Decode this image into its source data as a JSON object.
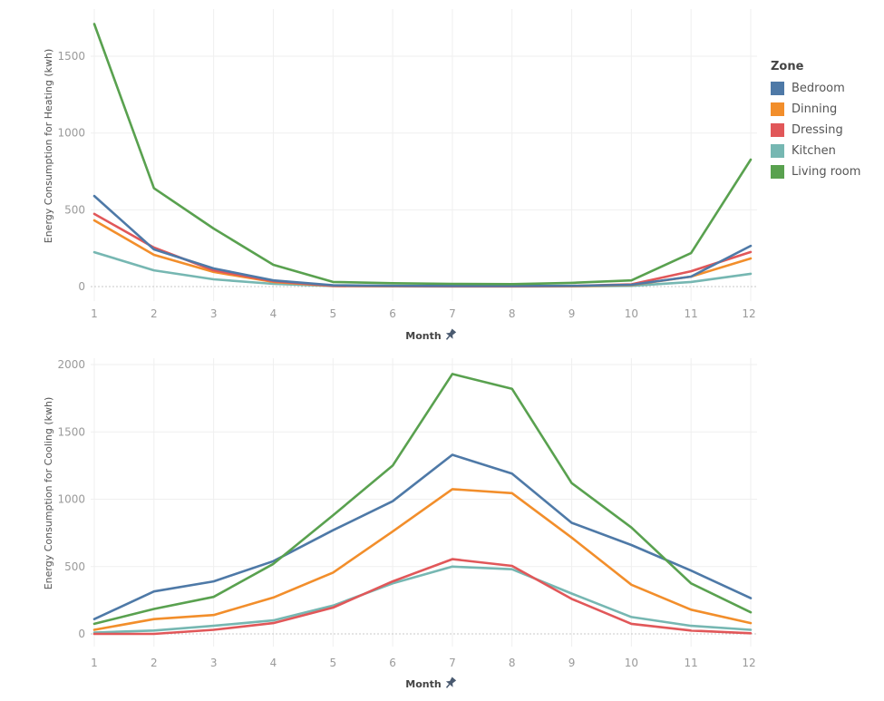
{
  "legend": {
    "title": "Zone",
    "items": [
      {
        "label": "Bedroom",
        "color": "#4e79a7"
      },
      {
        "label": "Dinning",
        "color": "#f28e2b"
      },
      {
        "label": "Dressing",
        "color": "#e15759"
      },
      {
        "label": "Kitchen",
        "color": "#76b7b2"
      },
      {
        "label": "Living room",
        "color": "#59a14f"
      }
    ]
  },
  "chart_data": [
    {
      "type": "line",
      "title": "",
      "xlabel": "Month",
      "ylabel": "Energy Consumption for Heating  (kwh)",
      "x": [
        1,
        2,
        3,
        4,
        5,
        6,
        7,
        8,
        9,
        10,
        11,
        12
      ],
      "xticks": [
        "1",
        "2",
        "3",
        "4",
        "5",
        "6",
        "7",
        "8",
        "9",
        "10",
        "11",
        "12"
      ],
      "yticks": [
        "0",
        "500",
        "1000",
        "1500"
      ],
      "ylim": [
        -180,
        1750
      ],
      "grid": true,
      "legend": "right",
      "series": [
        {
          "name": "Bedroom",
          "color": "#4e79a7",
          "values": [
            590,
            242,
            118,
            40,
            8,
            5,
            4,
            4,
            5,
            12,
            65,
            265
          ]
        },
        {
          "name": "Dinning",
          "color": "#f28e2b",
          "values": [
            431,
            207,
            95,
            30,
            4,
            2,
            1,
            1,
            2,
            10,
            65,
            183
          ]
        },
        {
          "name": "Dressing",
          "color": "#e15759",
          "values": [
            473,
            254,
            106,
            35,
            5,
            3,
            2,
            2,
            4,
            15,
            100,
            225
          ]
        },
        {
          "name": "Kitchen",
          "color": "#76b7b2",
          "values": [
            224,
            106,
            47,
            18,
            3,
            2,
            1,
            1,
            2,
            5,
            30,
            83
          ]
        },
        {
          "name": "Living room",
          "color": "#59a14f",
          "values": [
            1710,
            640,
            378,
            142,
            30,
            22,
            18,
            16,
            24,
            40,
            218,
            827
          ]
        }
      ]
    },
    {
      "type": "line",
      "title": "",
      "xlabel": "Month",
      "ylabel": "Energy Consumption for Cooling (kwh)",
      "x": [
        1,
        2,
        3,
        4,
        5,
        6,
        7,
        8,
        9,
        10,
        11,
        12
      ],
      "xticks": [
        "1",
        "2",
        "3",
        "4",
        "5",
        "6",
        "7",
        "8",
        "9",
        "10",
        "11",
        "12"
      ],
      "yticks": [
        "0",
        "500",
        "1000",
        "1500",
        "2000"
      ],
      "ylim": [
        -110,
        2000
      ],
      "grid": true,
      "legend": "right",
      "series": [
        {
          "name": "Bedroom",
          "color": "#4e79a7",
          "values": [
            110,
            315,
            390,
            540,
            770,
            985,
            1330,
            1190,
            825,
            660,
            470,
            265
          ]
        },
        {
          "name": "Dinning",
          "color": "#f28e2b",
          "values": [
            30,
            110,
            140,
            270,
            455,
            760,
            1075,
            1045,
            715,
            365,
            180,
            80
          ]
        },
        {
          "name": "Dressing",
          "color": "#e15759",
          "values": [
            0,
            0,
            30,
            80,
            195,
            390,
            555,
            505,
            260,
            75,
            25,
            5
          ]
        },
        {
          "name": "Kitchen",
          "color": "#76b7b2",
          "values": [
            10,
            25,
            60,
            100,
            210,
            375,
            500,
            480,
            300,
            125,
            60,
            30
          ]
        },
        {
          "name": "Living room",
          "color": "#59a14f",
          "values": [
            75,
            185,
            275,
            520,
            880,
            1250,
            1930,
            1820,
            1120,
            790,
            375,
            160
          ]
        }
      ]
    }
  ]
}
